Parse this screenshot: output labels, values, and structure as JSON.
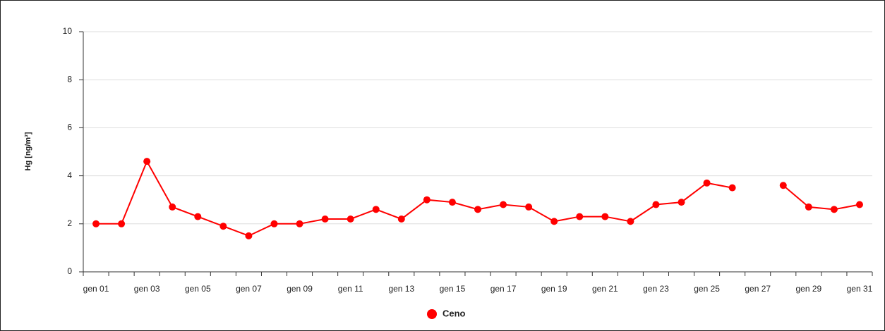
{
  "chart_data": {
    "type": "line",
    "y_label": "Hg [ng/m³]",
    "categories": [
      "gen 01",
      null,
      "gen 03",
      null,
      "gen 05",
      null,
      "gen 07",
      null,
      "gen 09",
      null,
      "gen 11",
      null,
      "gen 13",
      null,
      "gen 15",
      null,
      "gen 17",
      null,
      "gen 19",
      null,
      "gen 21",
      null,
      "gen 23",
      null,
      "gen 25",
      null,
      "gen 27",
      null,
      "gen 29",
      null,
      "gen 31"
    ],
    "series": [
      {
        "name": "Ceno",
        "color": "#ff0000",
        "values": [
          2.0,
          2.0,
          4.6,
          2.7,
          2.3,
          1.9,
          1.5,
          2.0,
          2.0,
          2.2,
          2.2,
          2.6,
          2.2,
          3.0,
          2.9,
          2.6,
          2.8,
          2.7,
          2.1,
          2.3,
          2.3,
          2.1,
          2.8,
          2.9,
          3.7,
          3.5,
          null,
          3.6,
          2.7,
          2.6,
          2.8
        ]
      }
    ],
    "ylim": [
      0,
      10
    ],
    "yticks": [
      0,
      2,
      4,
      6,
      8,
      10
    ],
    "grid": true,
    "legend": "bottom"
  }
}
